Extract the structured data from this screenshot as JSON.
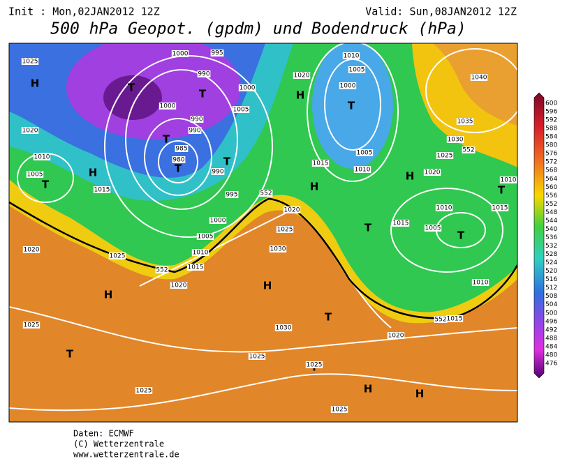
{
  "header": {
    "init": "Init : Mon,02JAN2012 12Z",
    "valid": "Valid: Sun,08JAN2012 12Z",
    "title": "500 hPa Geopot. (gpdm) und Bodendruck (hPa)"
  },
  "footer": [
    "Daten: ECMWF",
    "(C) Wetterzentrale",
    "www.wetterzentrale.de"
  ],
  "legend": {
    "labels": [
      600,
      596,
      592,
      588,
      584,
      580,
      576,
      572,
      568,
      564,
      560,
      556,
      552,
      548,
      544,
      540,
      536,
      532,
      528,
      524,
      520,
      516,
      512,
      508,
      504,
      500,
      496,
      492,
      488,
      484,
      480,
      476
    ]
  },
  "map": {
    "centers": [
      "H",
      "H",
      "T",
      "T",
      "T",
      "T",
      "T",
      "T",
      "H",
      "T",
      "H",
      "H",
      "T",
      "T",
      "T",
      "H",
      "H",
      "T",
      "T",
      "T",
      "H",
      "H"
    ],
    "isobars": [
      "1025",
      "1020",
      "1010",
      "1005",
      "1015",
      "1000",
      "995",
      "990",
      "1000",
      "990",
      "990",
      "985",
      "980",
      "990",
      "995",
      "1000",
      "1005",
      "1000",
      "1005",
      "1010",
      "1015",
      "1020",
      "1025",
      "1020",
      "1025",
      "1025",
      "1025",
      "1030",
      "1025",
      "1025",
      "1020",
      "1015",
      "1010",
      "1005",
      "1010",
      "1015",
      "1015",
      "1010",
      "1020",
      "1025",
      "1030",
      "1035",
      "1040",
      "1010",
      "1005",
      "1015",
      "1000",
      "1005",
      "1010",
      "1020",
      "1030",
      "1025",
      "1020",
      "552",
      "552",
      "552",
      "552"
    ]
  }
}
